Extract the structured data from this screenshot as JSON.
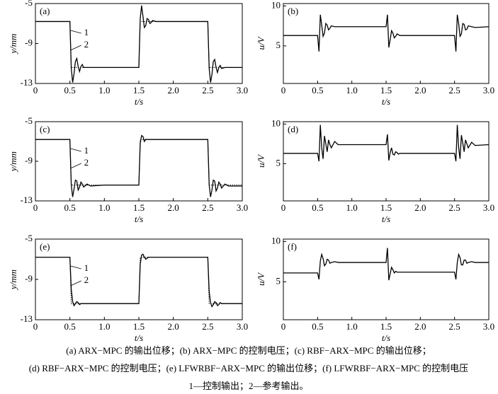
{
  "chart_data": [
    {
      "type": "line",
      "panel_label": "(a)",
      "xlabel": "t/s",
      "ylabel": "y/mm",
      "x": [
        0,
        0.25,
        0.48,
        0.5,
        0.52,
        0.54,
        0.56,
        0.58,
        0.6,
        0.62,
        0.64,
        0.66,
        0.68,
        0.7,
        0.75,
        0.8,
        1.0,
        1.25,
        1.48,
        1.5,
        1.52,
        1.54,
        1.56,
        1.58,
        1.6,
        1.62,
        1.64,
        1.66,
        1.68,
        1.7,
        1.75,
        1.8,
        2.0,
        2.25,
        2.48,
        2.5,
        2.52,
        2.54,
        2.56,
        2.58,
        2.6,
        2.62,
        2.64,
        2.66,
        2.68,
        2.7,
        2.75,
        2.8,
        3.0
      ],
      "series": [
        {
          "name": "1",
          "color": "#000000",
          "style": "solid",
          "values": [
            -6.8,
            -6.8,
            -6.8,
            -6.8,
            -11.5,
            -12.9,
            -12.0,
            -10.8,
            -10.5,
            -11.3,
            -11.8,
            -11.3,
            -11.1,
            -11.4,
            -11.4,
            -11.4,
            -11.4,
            -11.4,
            -11.4,
            -11.4,
            -6.5,
            -5.2,
            -6.3,
            -7.4,
            -7.2,
            -6.5,
            -6.6,
            -7.0,
            -6.9,
            -6.7,
            -6.8,
            -6.8,
            -6.8,
            -6.8,
            -6.8,
            -6.8,
            -11.5,
            -12.9,
            -12.1,
            -10.8,
            -10.6,
            -11.4,
            -11.9,
            -11.4,
            -11.2,
            -11.5,
            -11.4,
            -11.4,
            -11.4
          ]
        },
        {
          "name": "2",
          "color": "#000000",
          "style": "dotted",
          "values": [
            -6.8,
            -6.8,
            -6.8,
            -6.8,
            -11.4,
            -11.4,
            -11.4,
            -11.4,
            -11.4,
            -11.4,
            -11.4,
            -11.4,
            -11.4,
            -11.4,
            -11.4,
            -11.4,
            -11.4,
            -11.4,
            -11.4,
            -11.4,
            -6.8,
            -6.8,
            -6.8,
            -6.8,
            -6.8,
            -6.8,
            -6.8,
            -6.8,
            -6.8,
            -6.8,
            -6.8,
            -6.8,
            -6.8,
            -6.8,
            -6.8,
            -6.8,
            -11.4,
            -11.4,
            -11.4,
            -11.4,
            -11.4,
            -11.4,
            -11.4,
            -11.4,
            -11.4,
            -11.4,
            -11.4,
            -11.4,
            -11.4
          ]
        }
      ],
      "xlim": [
        0,
        3
      ],
      "xticks": [
        0,
        0.5,
        {
          "value": 1,
          "label": "1.0"
        },
        1.5,
        {
          "value": 2,
          "label": "2.0"
        },
        2.5,
        {
          "value": 3,
          "label": "3.0"
        }
      ],
      "ylim": [
        -13,
        -5
      ],
      "yticks": [
        -13,
        -9,
        -5
      ]
    },
    {
      "type": "line",
      "panel_label": "(b)",
      "xlabel": "t/s",
      "ylabel": "u/V",
      "x": [
        0,
        0.25,
        0.48,
        0.5,
        0.52,
        0.54,
        0.56,
        0.58,
        0.6,
        0.62,
        0.64,
        0.66,
        0.68,
        0.7,
        0.75,
        0.8,
        1.0,
        1.25,
        1.48,
        1.5,
        1.52,
        1.54,
        1.56,
        1.58,
        1.6,
        1.62,
        1.64,
        1.66,
        1.68,
        1.7,
        1.75,
        1.8,
        2.0,
        2.25,
        2.48,
        2.5,
        2.52,
        2.54,
        2.56,
        2.58,
        2.6,
        2.62,
        2.64,
        2.66,
        2.68,
        2.7,
        2.75,
        2.8,
        3.0
      ],
      "series": [
        {
          "color": "#000000",
          "style": "solid",
          "values": [
            6.3,
            6.3,
            6.3,
            6.3,
            4.3,
            8.9,
            7.6,
            6.2,
            6.6,
            7.8,
            7.6,
            7.0,
            7.2,
            7.5,
            7.4,
            7.4,
            7.4,
            7.4,
            7.4,
            7.4,
            8.9,
            4.8,
            5.8,
            6.9,
            6.6,
            6.0,
            6.2,
            6.5,
            6.4,
            6.3,
            6.3,
            6.3,
            6.3,
            6.3,
            6.3,
            6.3,
            4.3,
            8.9,
            7.8,
            6.2,
            6.5,
            7.8,
            7.7,
            7.0,
            7.1,
            7.5,
            7.4,
            7.3,
            7.4
          ]
        }
      ],
      "xlim": [
        0,
        3
      ],
      "xticks": [
        0,
        0.5,
        {
          "value": 1,
          "label": "1.0"
        },
        1.5,
        {
          "value": 2,
          "label": "2.0"
        },
        2.5,
        {
          "value": 3,
          "label": "3.0"
        }
      ],
      "ylim": [
        0.3,
        10.3
      ],
      "yticks": [
        5,
        10
      ]
    },
    {
      "type": "line",
      "panel_label": "(c)",
      "xlabel": "t/s",
      "ylabel": "y/mm",
      "x": [
        0,
        0.25,
        0.48,
        0.5,
        0.52,
        0.54,
        0.56,
        0.58,
        0.6,
        0.62,
        0.64,
        0.66,
        0.68,
        0.7,
        0.75,
        0.8,
        1.0,
        1.25,
        1.48,
        1.5,
        1.52,
        1.54,
        1.56,
        1.58,
        1.6,
        1.62,
        1.64,
        1.66,
        1.68,
        1.7,
        1.75,
        1.8,
        2.0,
        2.25,
        2.48,
        2.5,
        2.52,
        2.54,
        2.56,
        2.58,
        2.6,
        2.62,
        2.64,
        2.66,
        2.68,
        2.7,
        2.75,
        2.8,
        3.0
      ],
      "series": [
        {
          "name": "1",
          "color": "#000000",
          "style": "solid",
          "values": [
            -6.8,
            -6.8,
            -6.8,
            -6.8,
            -11.4,
            -12.6,
            -11.8,
            -10.9,
            -11.0,
            -11.9,
            -11.6,
            -11.1,
            -11.3,
            -11.6,
            -11.3,
            -11.5,
            -11.4,
            -11.4,
            -11.4,
            -11.4,
            -7.2,
            -6.4,
            -6.5,
            -7.0,
            -6.8,
            -6.8,
            -6.8,
            -6.8,
            -6.8,
            -6.8,
            -6.8,
            -6.8,
            -6.8,
            -6.8,
            -6.8,
            -6.8,
            -11.4,
            -12.6,
            -11.9,
            -10.9,
            -11.0,
            -12.0,
            -11.7,
            -11.1,
            -11.3,
            -11.7,
            -11.3,
            -11.5,
            -11.5
          ]
        },
        {
          "name": "2",
          "color": "#000000",
          "style": "dotted",
          "values": [
            -6.8,
            -6.8,
            -6.8,
            -6.8,
            -11.4,
            -11.4,
            -11.4,
            -11.4,
            -11.4,
            -11.4,
            -11.4,
            -11.4,
            -11.4,
            -11.4,
            -11.4,
            -11.4,
            -11.4,
            -11.4,
            -11.4,
            -11.4,
            -6.8,
            -6.8,
            -6.8,
            -6.8,
            -6.8,
            -6.8,
            -6.8,
            -6.8,
            -6.8,
            -6.8,
            -6.8,
            -6.8,
            -6.8,
            -6.8,
            -6.8,
            -6.8,
            -11.4,
            -11.4,
            -11.4,
            -11.4,
            -11.4,
            -11.4,
            -11.4,
            -11.4,
            -11.4,
            -11.4,
            -11.4,
            -11.4,
            -11.4
          ]
        }
      ],
      "xlim": [
        0,
        3
      ],
      "xticks": [
        0,
        0.5,
        {
          "value": 1,
          "label": "1.0"
        },
        1.5,
        {
          "value": 2,
          "label": "2.0"
        },
        2.5,
        {
          "value": 3,
          "label": "3.0"
        }
      ],
      "ylim": [
        -13,
        -5
      ],
      "yticks": [
        -13,
        -9,
        -5
      ]
    },
    {
      "type": "line",
      "panel_label": "(d)",
      "xlabel": "t/s",
      "ylabel": "u/V",
      "x": [
        0,
        0.25,
        0.48,
        0.5,
        0.52,
        0.54,
        0.56,
        0.58,
        0.6,
        0.62,
        0.64,
        0.66,
        0.68,
        0.7,
        0.75,
        0.8,
        1.0,
        1.25,
        1.48,
        1.5,
        1.52,
        1.54,
        1.56,
        1.58,
        1.6,
        1.62,
        1.64,
        1.66,
        1.68,
        1.7,
        1.75,
        1.8,
        2.0,
        2.25,
        2.48,
        2.5,
        2.52,
        2.54,
        2.56,
        2.58,
        2.6,
        2.62,
        2.64,
        2.66,
        2.68,
        2.7,
        2.75,
        2.8,
        3.0
      ],
      "series": [
        {
          "color": "#000000",
          "style": "solid",
          "values": [
            6.3,
            6.3,
            6.3,
            6.3,
            5.3,
            9.9,
            7.0,
            5.6,
            8.5,
            7.5,
            6.5,
            8.0,
            7.4,
            7.0,
            7.8,
            7.4,
            7.4,
            7.4,
            7.4,
            7.4,
            8.7,
            5.4,
            6.4,
            7.0,
            6.2,
            6.1,
            6.5,
            6.4,
            6.2,
            6.3,
            6.3,
            6.3,
            6.3,
            6.3,
            6.3,
            6.3,
            5.3,
            9.9,
            7.0,
            5.6,
            8.6,
            7.6,
            6.5,
            8.0,
            7.5,
            7.0,
            7.7,
            7.3,
            7.4
          ]
        }
      ],
      "xlim": [
        0,
        3
      ],
      "xticks": [
        0,
        0.5,
        {
          "value": 1,
          "label": "1.0"
        },
        1.5,
        {
          "value": 2,
          "label": "2.0"
        },
        2.5,
        {
          "value": 3,
          "label": "3.0"
        }
      ],
      "ylim": [
        0.3,
        10.3
      ],
      "yticks": [
        5,
        10
      ]
    },
    {
      "type": "line",
      "panel_label": "(e)",
      "xlabel": "t/s",
      "ylabel": "y/mm",
      "x": [
        0,
        0.25,
        0.48,
        0.5,
        0.52,
        0.54,
        0.56,
        0.58,
        0.6,
        0.62,
        0.64,
        0.66,
        0.68,
        0.7,
        0.75,
        0.8,
        1.0,
        1.25,
        1.48,
        1.5,
        1.52,
        1.54,
        1.56,
        1.58,
        1.6,
        1.62,
        1.64,
        1.66,
        1.68,
        1.7,
        1.75,
        1.8,
        2.0,
        2.25,
        2.48,
        2.5,
        2.52,
        2.54,
        2.56,
        2.58,
        2.6,
        2.62,
        2.64,
        2.66,
        2.68,
        2.7,
        2.75,
        2.8,
        3.0
      ],
      "series": [
        {
          "name": "1",
          "color": "#000000",
          "style": "solid",
          "values": [
            -6.8,
            -6.8,
            -6.8,
            -6.8,
            -10.0,
            -11.2,
            -11.6,
            -11.4,
            -11.2,
            -11.3,
            -11.5,
            -11.4,
            -11.4,
            -11.4,
            -11.4,
            -11.4,
            -11.4,
            -11.4,
            -11.4,
            -11.4,
            -7.5,
            -6.6,
            -6.5,
            -6.8,
            -7.0,
            -6.9,
            -6.8,
            -6.8,
            -6.8,
            -6.8,
            -6.8,
            -6.8,
            -6.8,
            -6.8,
            -6.8,
            -6.8,
            -10.2,
            -11.3,
            -11.7,
            -11.5,
            -11.2,
            -11.3,
            -11.6,
            -11.5,
            -11.3,
            -11.4,
            -11.4,
            -11.4,
            -11.4
          ]
        },
        {
          "name": "2",
          "color": "#000000",
          "style": "dotted",
          "values": [
            -6.8,
            -6.8,
            -6.8,
            -6.8,
            -11.4,
            -11.4,
            -11.4,
            -11.4,
            -11.4,
            -11.4,
            -11.4,
            -11.4,
            -11.4,
            -11.4,
            -11.4,
            -11.4,
            -11.4,
            -11.4,
            -11.4,
            -11.4,
            -6.8,
            -6.8,
            -6.8,
            -6.8,
            -6.8,
            -6.8,
            -6.8,
            -6.8,
            -6.8,
            -6.8,
            -6.8,
            -6.8,
            -6.8,
            -6.8,
            -6.8,
            -6.8,
            -11.4,
            -11.4,
            -11.4,
            -11.4,
            -11.4,
            -11.4,
            -11.4,
            -11.4,
            -11.4,
            -11.4,
            -11.4,
            -11.4,
            -11.4
          ]
        }
      ],
      "xlim": [
        0,
        3
      ],
      "xticks": [
        0,
        0.5,
        {
          "value": 1,
          "label": "1.0"
        },
        1.5,
        {
          "value": 2,
          "label": "2.0"
        },
        2.5,
        {
          "value": 3,
          "label": "3.0"
        }
      ],
      "ylim": [
        -13,
        -5
      ],
      "yticks": [
        -13,
        -9,
        -5
      ]
    },
    {
      "type": "line",
      "panel_label": "(f)",
      "xlabel": "t/s",
      "ylabel": "u/V",
      "x": [
        0,
        0.25,
        0.48,
        0.5,
        0.52,
        0.54,
        0.56,
        0.58,
        0.6,
        0.62,
        0.64,
        0.66,
        0.68,
        0.7,
        0.75,
        0.8,
        1.0,
        1.25,
        1.48,
        1.5,
        1.52,
        1.54,
        1.56,
        1.58,
        1.6,
        1.62,
        1.64,
        1.66,
        1.68,
        1.7,
        1.75,
        1.8,
        2.0,
        2.25,
        2.48,
        2.5,
        2.52,
        2.54,
        2.56,
        2.58,
        2.6,
        2.62,
        2.64,
        2.66,
        2.68,
        2.7,
        2.75,
        2.8,
        3.0
      ],
      "series": [
        {
          "color": "#000000",
          "style": "solid",
          "values": [
            6.1,
            6.1,
            6.1,
            6.1,
            5.3,
            7.6,
            8.4,
            7.9,
            7.0,
            7.2,
            7.8,
            7.7,
            7.3,
            7.4,
            7.5,
            7.4,
            7.4,
            7.4,
            7.4,
            7.4,
            9.2,
            5.2,
            6.0,
            6.8,
            6.5,
            6.1,
            6.3,
            6.2,
            6.2,
            6.2,
            6.2,
            6.2,
            6.2,
            6.2,
            6.2,
            6.2,
            5.3,
            7.4,
            8.4,
            8.0,
            7.1,
            7.1,
            7.7,
            7.7,
            7.3,
            7.4,
            7.5,
            7.4,
            7.4
          ]
        }
      ],
      "xlim": [
        0,
        3
      ],
      "xticks": [
        0,
        0.5,
        {
          "value": 1,
          "label": "1.0"
        },
        1.5,
        {
          "value": 2,
          "label": "2.0"
        },
        2.5,
        {
          "value": 3,
          "label": "3.0"
        }
      ],
      "ylim": [
        0.3,
        10.3
      ],
      "yticks": [
        5,
        10
      ]
    }
  ],
  "caption": [
    "(a) ARX−MPC 的输出位移；(b) ARX−MPC 的控制电压；(c) RBF−ARX−MPC 的输出位移；",
    "(d) RBF−ARX−MPC 的控制电压；(e) LFWRBF−ARX−MPC 的输出位移；(f) LFWRBF−ARX−MPC 的控制电压",
    "1—控制输出；2—参考输出。"
  ]
}
